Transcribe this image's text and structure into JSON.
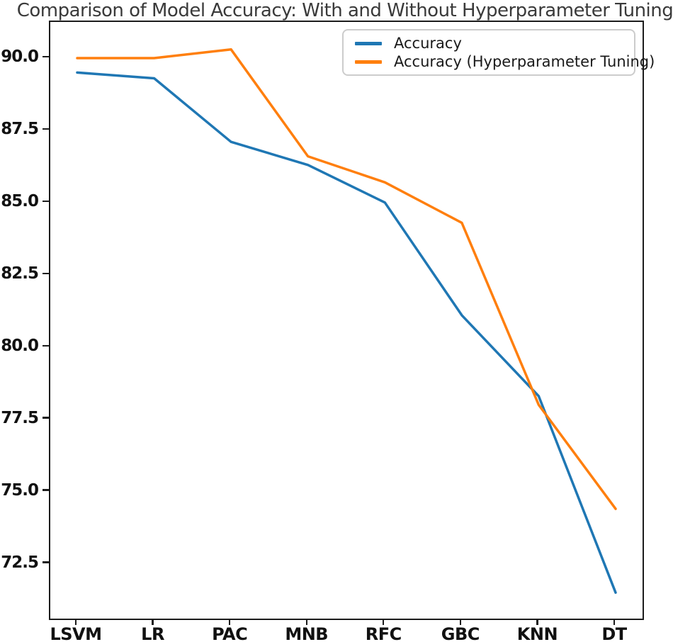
{
  "chart_data": {
    "type": "line",
    "title": "Comparison of Model Accuracy: With and Without Hyperparameter Tuning",
    "xlabel": "",
    "ylabel": "",
    "categories": [
      "LSVM",
      "LR",
      "PAC",
      "MNB",
      "RFC",
      "GBC",
      "KNN",
      "DT"
    ],
    "series": [
      {
        "name": "Accuracy",
        "color": "#1f77b4",
        "values": [
          89.5,
          89.3,
          87.1,
          86.3,
          85.0,
          81.1,
          78.3,
          71.5
        ]
      },
      {
        "name": "Accuracy (Hyperparameter Tuning)",
        "color": "#ff7f0e",
        "values": [
          90.0,
          90.0,
          90.3,
          86.6,
          85.7,
          84.3,
          78.0,
          74.4
        ]
      }
    ],
    "yticks": [
      72.5,
      75.0,
      77.5,
      80.0,
      82.5,
      85.0,
      87.5,
      90.0
    ],
    "ytick_labels": [
      "72.5",
      "75.0",
      "77.5",
      "80.0",
      "82.5",
      "85.0",
      "87.5",
      "90.0"
    ],
    "ylim": [
      70.6,
      91.25
    ],
    "xlim": [
      -0.35,
      7.35
    ],
    "grid": false,
    "legend_position": "upper-right",
    "line_width": 3.5,
    "spine_color": "#1c1c1c"
  }
}
